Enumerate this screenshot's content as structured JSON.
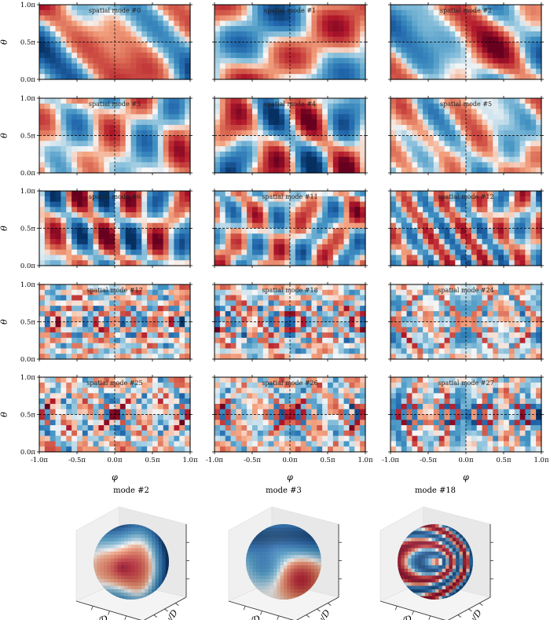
{
  "chart_data": {
    "type": "heatmap",
    "description_scope": "grid of spatial POD modes on a sphere (phi-theta maps) plus 3D sphere renderings",
    "colormap": "RdBu_r",
    "colors": {
      "negative": "#08519c",
      "neutral": "#f7f7f7",
      "positive": "#8b0a1f",
      "guide": "#000000"
    },
    "xlabel": "φ",
    "ylabel": "θ",
    "xlim": [
      -1.0,
      1.0
    ],
    "ylim": [
      0.0,
      1.0
    ],
    "xticks": [
      "-1.0π",
      "-0.5π",
      "0.0π",
      "0.5π",
      "1.0π"
    ],
    "yticks": [
      "0.0π",
      "0.5π",
      "1.0π"
    ],
    "guides": {
      "phi": 0.0,
      "theta": 0.5
    },
    "panels": [
      {
        "title": "spatial mode #0",
        "mode": 0,
        "freq": 1,
        "ax": 1.3,
        "ay": 1.0,
        "seed": 1.2,
        "rings": 0
      },
      {
        "title": "spatial mode #1",
        "mode": 1,
        "freq": 1,
        "ax": 1.0,
        "ay": 1.2,
        "seed": 2.7,
        "rings": 0
      },
      {
        "title": "spatial mode #2",
        "mode": 2,
        "freq": 1,
        "ax": 1.4,
        "ay": 1.1,
        "seed": 3.9,
        "rings": 0
      },
      {
        "title": "spatial mode #3",
        "mode": 3,
        "freq": 2,
        "ax": 1.8,
        "ay": 1.2,
        "seed": 5.1,
        "rings": 0
      },
      {
        "title": "spatial mode #4",
        "mode": 4,
        "freq": 2,
        "ax": 2.0,
        "ay": 1.3,
        "seed": 6.4,
        "rings": 0
      },
      {
        "title": "spatial mode #5",
        "mode": 5,
        "freq": 2,
        "ax": 2.2,
        "ay": 1.5,
        "seed": 7.3,
        "rings": 0
      },
      {
        "title": "spatial mode #6",
        "mode": 6,
        "freq": 3,
        "ax": 2.6,
        "ay": 1.6,
        "seed": 8.8,
        "rings": 0
      },
      {
        "title": "spatial mode #11",
        "mode": 11,
        "freq": 3,
        "ax": 3.2,
        "ay": 2.0,
        "seed": 9.6,
        "rings": 0
      },
      {
        "title": "spatial mode #12",
        "mode": 12,
        "freq": 4,
        "ax": 3.6,
        "ay": 2.3,
        "seed": 10.9,
        "rings": 0
      },
      {
        "title": "spatial mode #17",
        "mode": 17,
        "freq": 3,
        "ax": 3.0,
        "ay": 2.0,
        "seed": 12.2,
        "rings": 3
      },
      {
        "title": "spatial mode #18",
        "mode": 18,
        "freq": 3,
        "ax": 3.2,
        "ay": 2.2,
        "seed": 13.5,
        "rings": 3.5
      },
      {
        "title": "spatial mode #24",
        "mode": 24,
        "freq": 4,
        "ax": 4.0,
        "ay": 2.6,
        "seed": 14.1,
        "rings": 5.5
      },
      {
        "title": "spatial mode #25",
        "mode": 25,
        "freq": 4,
        "ax": 4.2,
        "ay": 2.8,
        "seed": 15.7,
        "rings": 5
      },
      {
        "title": "spatial mode #26",
        "mode": 26,
        "freq": 4,
        "ax": 4.4,
        "ay": 3.0,
        "seed": 16.3,
        "rings": 5
      },
      {
        "title": "spatial mode #27",
        "mode": 27,
        "freq": 5,
        "ax": 4.8,
        "ay": 3.2,
        "seed": 17.9,
        "rings": 6
      }
    ],
    "spheres": [
      {
        "label": "mode #2",
        "xaxis": "x/D",
        "yaxis": "y/D",
        "style": "blob"
      },
      {
        "label": "mode #3",
        "xaxis": "x/D",
        "yaxis": "y/D",
        "style": "split"
      },
      {
        "label": "mode #18",
        "xaxis": "x/D",
        "yaxis": "y/D",
        "style": "stripes"
      }
    ]
  }
}
